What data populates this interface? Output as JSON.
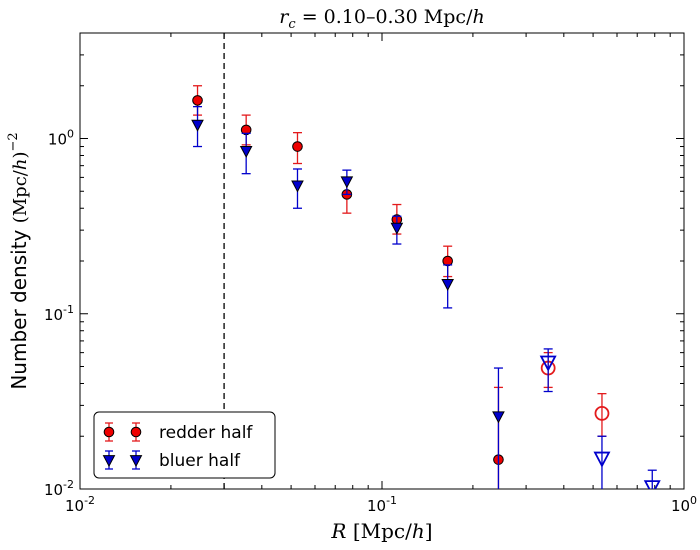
{
  "chart_data": {
    "type": "scatter",
    "title": "r_c = 0.10–0.30 Mpc/h",
    "title_parts": {
      "var": "r",
      "sub": "c",
      "rest": " = 0.10–0.30 Mpc/",
      "unit_var": "h"
    },
    "xlabel": "R [Mpc/h]",
    "xlabel_parts": {
      "var": "R",
      "rest": " [Mpc/",
      "unit_var": "h",
      "close": "]"
    },
    "ylabel": "Number density (Mpc/h)^−2",
    "ylabel_parts": {
      "text": "Number density ",
      "unit": "(Mpc/",
      "unit_var": "h",
      "close": ")",
      "exp": "−2"
    },
    "x_scale": "log",
    "y_scale": "log",
    "xlim": [
      0.01,
      1.0
    ],
    "ylim": [
      0.01,
      4.0
    ],
    "x_ticks": [
      {
        "value": 0.01,
        "base": "10",
        "exp": "-2"
      },
      {
        "value": 0.1,
        "base": "10",
        "exp": "-1"
      },
      {
        "value": 1.0,
        "base": "10",
        "exp": "0"
      }
    ],
    "y_ticks": [
      {
        "value": 0.01,
        "base": "10",
        "exp": "-2"
      },
      {
        "value": 0.1,
        "base": "10",
        "exp": "-1"
      },
      {
        "value": 1.0,
        "base": "10",
        "exp": "0"
      }
    ],
    "vline": {
      "x": 0.03,
      "style": "dashed",
      "color": "#000000"
    },
    "grid": false,
    "legend_position": "lower-left",
    "series": [
      {
        "name": "redder half",
        "marker": "circle",
        "color": "#e31a1c",
        "fill": "#ee0000",
        "points": [
          {
            "x": 0.0245,
            "y": 1.65,
            "lo": 1.36,
            "hi": 2.0,
            "open": false
          },
          {
            "x": 0.0355,
            "y": 1.12,
            "lo": 0.92,
            "hi": 1.36,
            "open": false
          },
          {
            "x": 0.0525,
            "y": 0.9,
            "lo": 0.72,
            "hi": 1.08,
            "open": false
          },
          {
            "x": 0.0765,
            "y": 0.48,
            "lo": 0.375,
            "hi": 0.59,
            "open": false
          },
          {
            "x": 0.112,
            "y": 0.345,
            "lo": 0.285,
            "hi": 0.42,
            "open": false
          },
          {
            "x": 0.165,
            "y": 0.2,
            "lo": 0.163,
            "hi": 0.243,
            "open": false
          },
          {
            "x": 0.243,
            "y": 0.0147,
            "lo": 0.0075,
            "hi": 0.038,
            "open": false
          },
          {
            "x": 0.355,
            "y": 0.049,
            "lo": 0.038,
            "hi": 0.06,
            "open": true
          },
          {
            "x": 0.535,
            "y": 0.027,
            "lo": 0.02,
            "hi": 0.035,
            "open": true
          }
        ]
      },
      {
        "name": "bluer half",
        "marker": "triangle-down",
        "color": "#0000cc",
        "fill": "#0000cc",
        "points": [
          {
            "x": 0.0245,
            "y": 1.2,
            "lo": 0.9,
            "hi": 1.52,
            "open": false
          },
          {
            "x": 0.0355,
            "y": 0.85,
            "lo": 0.63,
            "hi": 1.07,
            "open": false
          },
          {
            "x": 0.0525,
            "y": 0.54,
            "lo": 0.4,
            "hi": 0.67,
            "open": false
          },
          {
            "x": 0.0765,
            "y": 0.57,
            "lo": 0.48,
            "hi": 0.66,
            "open": false
          },
          {
            "x": 0.112,
            "y": 0.31,
            "lo": 0.25,
            "hi": 0.36,
            "open": false
          },
          {
            "x": 0.165,
            "y": 0.148,
            "lo": 0.108,
            "hi": 0.19,
            "open": false
          },
          {
            "x": 0.243,
            "y": 0.026,
            "lo": 0.0075,
            "hi": 0.049,
            "open": false
          },
          {
            "x": 0.355,
            "y": 0.053,
            "lo": 0.036,
            "hi": 0.063,
            "open": true
          },
          {
            "x": 0.535,
            "y": 0.015,
            "lo": 0.0075,
            "hi": 0.02,
            "open": true
          },
          {
            "x": 0.785,
            "y": 0.0103,
            "lo": 0.0075,
            "hi": 0.0128,
            "open": true
          }
        ]
      }
    ]
  }
}
